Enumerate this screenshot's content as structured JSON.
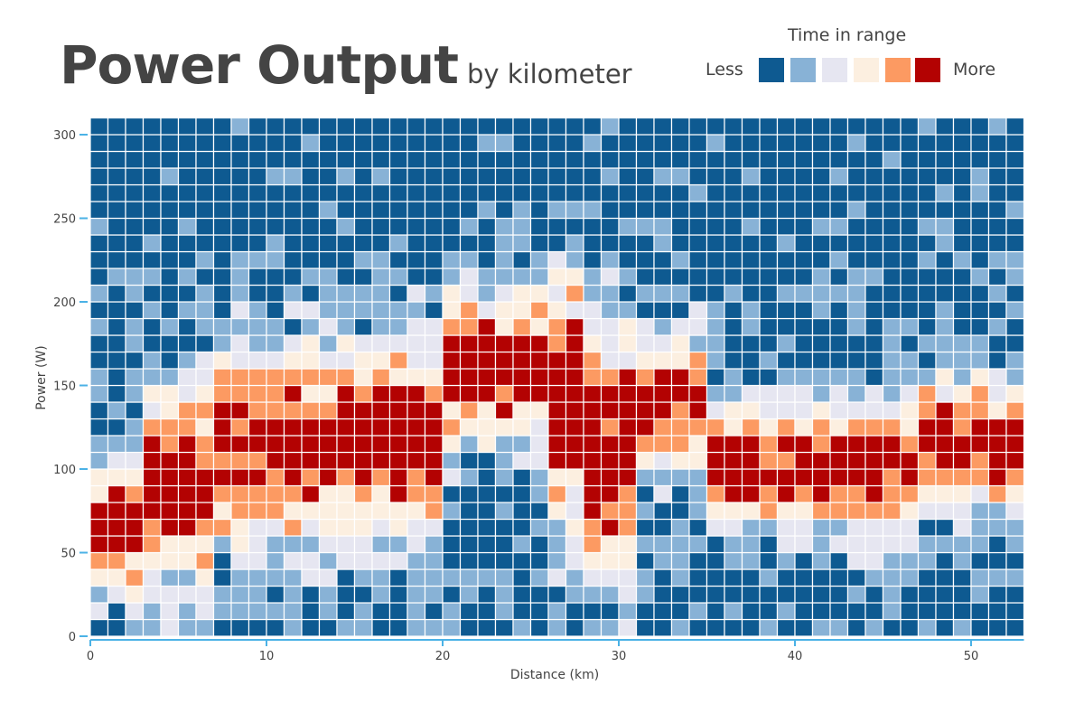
{
  "chart_data": {
    "type": "heatmap",
    "title": "Power Output",
    "subtitle": "by kilometer",
    "xlabel": "Distance (km)",
    "ylabel": "Power (W)",
    "xlim": [
      0,
      53
    ],
    "ylim": [
      0,
      310
    ],
    "x_bin_km": 1,
    "y_bin_w": 10,
    "xticks": [
      0,
      10,
      20,
      30,
      40,
      50
    ],
    "yticks": [
      0,
      50,
      100,
      150,
      200,
      250,
      300
    ],
    "value_scale": "relative time in range, 0 (less) to 5 (more)",
    "legend": {
      "title": "Time in range",
      "low_label": "Less",
      "high_label": "More",
      "colors": [
        "#0e5a91",
        "#88b2d6",
        "#e6e6f1",
        "#fcefe0",
        "#fc9a62",
        "#b30202"
      ]
    }
  },
  "colors": {
    "axis": "#4bb2e6",
    "cell_border": "#ffffff",
    "title": "#444444"
  }
}
